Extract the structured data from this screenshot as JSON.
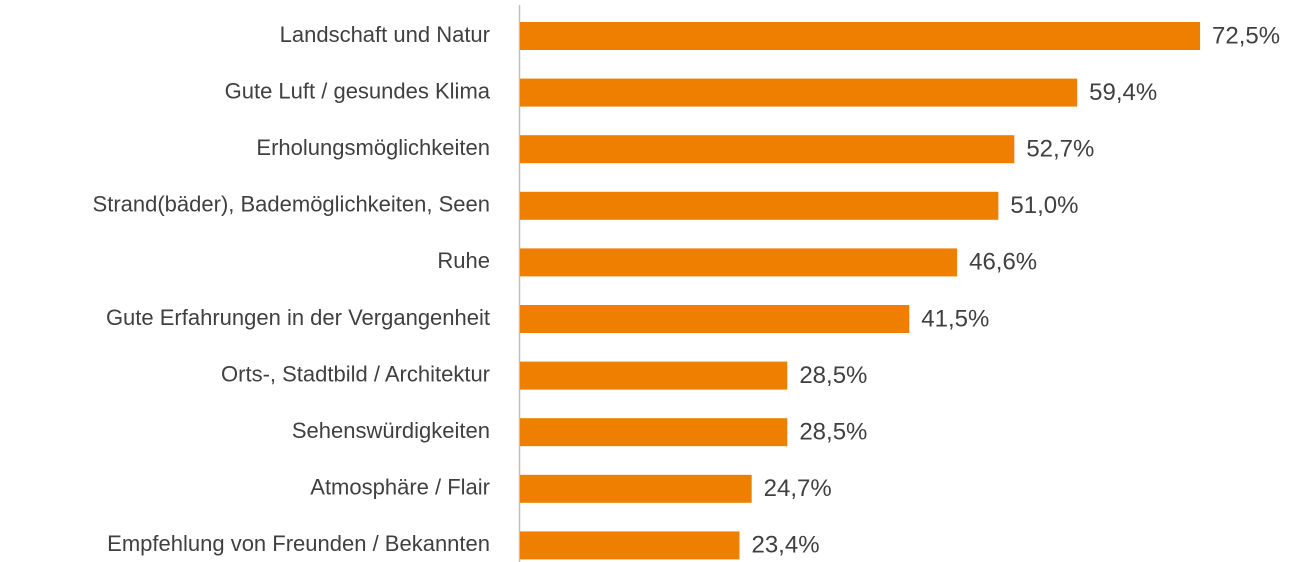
{
  "chart_data": {
    "type": "bar",
    "orientation": "horizontal",
    "categories": [
      "Landschaft und Natur",
      "Gute Luft / gesundes Klima",
      "Erholungsmöglichkeiten",
      "Strand(bäder), Bademöglichkeiten, Seen",
      "Ruhe",
      "Gute Erfahrungen in der Vergangenheit",
      "Orts-, Stadtbild / Architektur",
      "Sehenswürdigkeiten",
      "Atmosphäre / Flair",
      "Empfehlung von Freunden / Bekannten"
    ],
    "values": [
      72.5,
      59.4,
      52.7,
      51.0,
      46.6,
      41.5,
      28.5,
      28.5,
      24.7,
      23.4
    ],
    "value_labels": [
      "72,5%",
      "59,4%",
      "52,7%",
      "51,0%",
      "46,6%",
      "41,5%",
      "28,5%",
      "28,5%",
      "24,7%",
      "23,4%"
    ],
    "color": "#ef7f00"
  }
}
